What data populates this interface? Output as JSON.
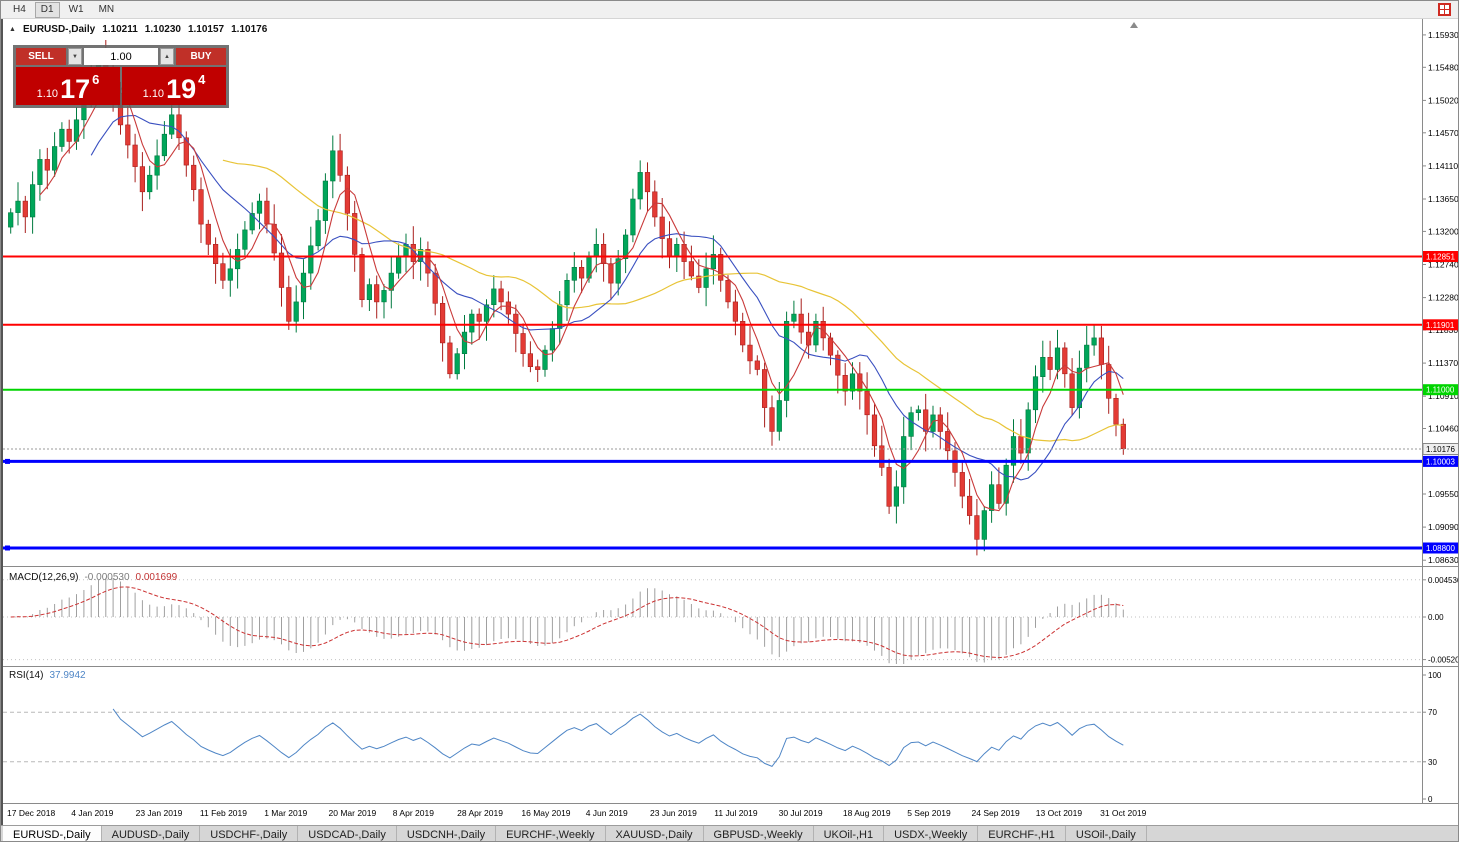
{
  "toolbar": {
    "timeframes": [
      {
        "label": "H4",
        "active": false
      },
      {
        "label": "D1",
        "active": true
      },
      {
        "label": "W1",
        "active": false
      },
      {
        "label": "MN",
        "active": false
      }
    ]
  },
  "chart_header": {
    "marker": "▲",
    "symbol": "EURUSD-,Daily",
    "open": "1.10211",
    "high": "1.10230",
    "low": "1.10157",
    "close": "1.10176"
  },
  "trade_panel": {
    "sell_label": "SELL",
    "buy_label": "BUY",
    "volume": "1.00",
    "spin_down_icon": "▼",
    "spin_up_icon": "▲",
    "sell_price": {
      "prefix": "1.10",
      "big": "17",
      "sup": "6"
    },
    "buy_price": {
      "prefix": "1.10",
      "big": "19",
      "sup": "4"
    }
  },
  "price_axis_ticks": [
    "1.15930",
    "1.15480",
    "1.15020",
    "1.14570",
    "1.14110",
    "1.13650",
    "1.13200",
    "1.12740",
    "1.12280",
    "1.11830",
    "1.11370",
    "1.10910",
    "1.10460",
    "1.09550",
    "1.09090",
    "1.08630"
  ],
  "levels": [
    {
      "label": "1.12851",
      "value": 1.12851,
      "color": "#ff0000",
      "width": 2,
      "handle": false
    },
    {
      "label": "1.11901",
      "value": 1.11901,
      "color": "#ff0000",
      "width": 2,
      "handle": false
    },
    {
      "label": "1.11000",
      "value": 1.11,
      "color": "#00d400",
      "width": 2,
      "handle": false
    },
    {
      "label": "1.10003",
      "value": 1.10003,
      "color": "#0000ff",
      "width": 3,
      "handle": true
    },
    {
      "label": "1.08800",
      "value": 1.088,
      "color": "#0000ff",
      "width": 3,
      "handle": true
    }
  ],
  "current_price": {
    "label": "1.10176",
    "value": 1.10176
  },
  "date_axis": [
    "17 Dec 2018",
    "4 Jan 2019",
    "23 Jan 2019",
    "11 Feb 2019",
    "1 Mar 2019",
    "20 Mar 2019",
    "8 Apr 2019",
    "28 Apr 2019",
    "16 May 2019",
    "4 Jun 2019",
    "23 Jun 2019",
    "11 Jul 2019",
    "30 Jul 2019",
    "18 Aug 2019",
    "5 Sep 2019",
    "24 Sep 2019",
    "13 Oct 2019",
    "31 Oct 2019"
  ],
  "macd_panel": {
    "name": "MACD(12,26,9)",
    "value1": "-0.000530",
    "value2": "0.001699",
    "axis": [
      "0.004536",
      "0.00",
      "-0.00520"
    ]
  },
  "rsi_panel": {
    "name": "RSI(14)",
    "value": "37.9942",
    "axis": [
      "100",
      "70",
      "30",
      "0"
    ],
    "guide_levels": [
      70,
      30
    ]
  },
  "tabs": [
    {
      "label": "EURUSD-,Daily",
      "active": true
    },
    {
      "label": "AUDUSD-,Daily",
      "active": false
    },
    {
      "label": "USDCHF-,Daily",
      "active": false
    },
    {
      "label": "USDCAD-,Daily",
      "active": false
    },
    {
      "label": "USDCNH-,Daily",
      "active": false
    },
    {
      "label": "EURCHF-,Weekly",
      "active": false
    },
    {
      "label": "XAUUSD-,Daily",
      "active": false
    },
    {
      "label": "GBPUSD-,Weekly",
      "active": false
    },
    {
      "label": "UKOil-,H1",
      "active": false
    },
    {
      "label": "USDX-,Weekly",
      "active": false
    },
    {
      "label": "EURCHF-,H1",
      "active": false
    },
    {
      "label": "USOil-,Daily",
      "active": false
    }
  ],
  "colors": {
    "candle_up": "#00a65a",
    "candle_up_stroke": "#007a3f",
    "candle_down": "#e33b35",
    "candle_down_stroke": "#a81f1c",
    "ma_fast": "#c93a3a",
    "ma_mid": "#3a50c0",
    "ma_slow": "#e8c437",
    "macd_hist": "#a0a0a0",
    "macd_signal": "#cc3333",
    "rsi_line": "#4f86c6",
    "level_red": "#ff0000",
    "level_green": "#00d400",
    "level_blue": "#0000ff",
    "panel_red": "#c00000"
  },
  "chart_data": {
    "type": "candlestick",
    "title": "EURUSD-,Daily",
    "timeframe": "Daily",
    "y_range": [
      1.0852,
      1.1604
    ],
    "x_labels": [
      "17 Dec 2018",
      "4 Jan 2019",
      "23 Jan 2019",
      "11 Feb 2019",
      "1 Mar 2019",
      "20 Mar 2019",
      "8 Apr 2019",
      "28 Apr 2019",
      "16 May 2019",
      "4 Jun 2019",
      "23 Jun 2019",
      "11 Jul 2019",
      "30 Jul 2019",
      "18 Aug 2019",
      "5 Sep 2019",
      "24 Sep 2019",
      "13 Oct 2019",
      "31 Oct 2019"
    ],
    "close": [
      1.1346,
      1.1362,
      1.134,
      1.1385,
      1.142,
      1.1405,
      1.1438,
      1.1462,
      1.1445,
      1.1475,
      1.15,
      1.153,
      1.1558,
      1.1535,
      1.1512,
      1.1468,
      1.144,
      1.141,
      1.1375,
      1.1398,
      1.1425,
      1.1455,
      1.1482,
      1.145,
      1.1412,
      1.1378,
      1.133,
      1.1302,
      1.1275,
      1.1252,
      1.1268,
      1.1295,
      1.1322,
      1.1345,
      1.1362,
      1.133,
      1.129,
      1.1242,
      1.1195,
      1.1222,
      1.1262,
      1.13,
      1.1335,
      1.139,
      1.1432,
      1.1398,
      1.1345,
      1.1288,
      1.1225,
      1.1246,
      1.1222,
      1.1238,
      1.1262,
      1.1285,
      1.1302,
      1.1278,
      1.1295,
      1.1262,
      1.122,
      1.1165,
      1.1122,
      1.115,
      1.118,
      1.1205,
      1.1195,
      1.1218,
      1.124,
      1.1222,
      1.1205,
      1.1178,
      1.115,
      1.1132,
      1.1128,
      1.1155,
      1.1185,
      1.1218,
      1.1252,
      1.127,
      1.1255,
      1.1285,
      1.1302,
      1.1275,
      1.1248,
      1.1282,
      1.1315,
      1.1365,
      1.1402,
      1.1375,
      1.134,
      1.131,
      1.1285,
      1.1302,
      1.1278,
      1.1258,
      1.1242,
      1.1268,
      1.1288,
      1.1252,
      1.1222,
      1.1195,
      1.1162,
      1.114,
      1.1128,
      1.1075,
      1.1042,
      1.1085,
      1.1195,
      1.1205,
      1.118,
      1.1162,
      1.1195,
      1.1172,
      1.1148,
      1.112,
      1.1098,
      1.1122,
      1.1098,
      1.1065,
      1.1022,
      1.0992,
      1.0938,
      1.0965,
      1.1035,
      1.1068,
      1.1072,
      1.1042,
      1.1065,
      1.1042,
      1.1015,
      1.0985,
      1.0952,
      1.0925,
      1.0892,
      1.0932,
      1.0968,
      1.0942,
      1.0995,
      1.1035,
      1.1012,
      1.1072,
      1.1118,
      1.1145,
      1.1128,
      1.1158,
      1.1122,
      1.1075,
      1.113,
      1.1162,
      1.1172,
      1.1135,
      1.1088,
      1.1052,
      1.1018
    ],
    "levels": [
      1.12851,
      1.11901,
      1.11,
      1.10003,
      1.088
    ],
    "current_price": 1.10176,
    "ohlc_display": {
      "open": 1.10211,
      "high": 1.1023,
      "low": 1.10157,
      "close": 1.10176
    },
    "indicators": {
      "moving_averages": [
        {
          "period": 5
        },
        {
          "period": 12
        },
        {
          "period": 30
        }
      ],
      "macd": {
        "fast": 12,
        "slow": 26,
        "signal": 9,
        "last_histogram": -0.00053,
        "last_signal": 0.001699,
        "axis_max": 0.004536,
        "axis_min": -0.0052
      },
      "rsi": {
        "period": 14,
        "last": 37.9942,
        "levels": [
          70,
          30
        ]
      }
    }
  }
}
